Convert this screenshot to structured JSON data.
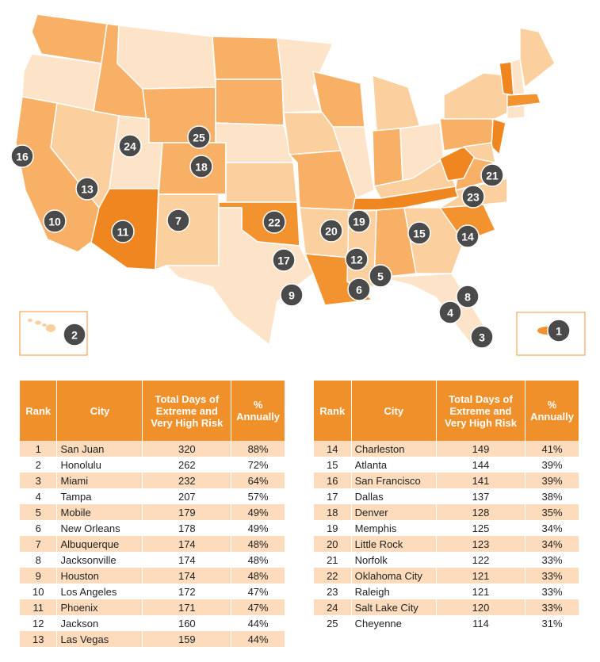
{
  "colors": {
    "very_light": "#fde3c8",
    "light": "#fbcf9e",
    "medium": "#f8b067",
    "dark": "#f39330",
    "darkest": "#ef861f",
    "border": "#ffffff",
    "marker": "#4a4a4a",
    "header": "#f0902b",
    "row_alt": "#fcdcbc"
  },
  "map": {
    "markers": [
      {
        "rank": "1",
        "city": "San Juan"
      },
      {
        "rank": "2",
        "city": "Honolulu"
      },
      {
        "rank": "3",
        "city": "Miami"
      },
      {
        "rank": "4",
        "city": "Tampa"
      },
      {
        "rank": "5",
        "city": "Mobile"
      },
      {
        "rank": "6",
        "city": "New Orleans"
      },
      {
        "rank": "7",
        "city": "Albuquerque"
      },
      {
        "rank": "8",
        "city": "Jacksonville"
      },
      {
        "rank": "9",
        "city": "Houston"
      },
      {
        "rank": "10",
        "city": "Los Angeles"
      },
      {
        "rank": "11",
        "city": "Phoenix"
      },
      {
        "rank": "12",
        "city": "Jackson"
      },
      {
        "rank": "13",
        "city": "Las Vegas"
      },
      {
        "rank": "14",
        "city": "Charleston"
      },
      {
        "rank": "15",
        "city": "Atlanta"
      },
      {
        "rank": "16",
        "city": "San Francisco"
      },
      {
        "rank": "17",
        "city": "Dallas"
      },
      {
        "rank": "18",
        "city": "Denver"
      },
      {
        "rank": "19",
        "city": "Memphis"
      },
      {
        "rank": "20",
        "city": "Little Rock"
      },
      {
        "rank": "21",
        "city": "Norfolk"
      },
      {
        "rank": "22",
        "city": "Oklahoma City"
      },
      {
        "rank": "23",
        "city": "Raleigh"
      },
      {
        "rank": "24",
        "city": "Salt Lake City"
      },
      {
        "rank": "25",
        "city": "Cheyenne"
      }
    ]
  },
  "table": {
    "headers": {
      "rank": "Rank",
      "city": "City",
      "days": "Total Days of Extreme and Very High Risk",
      "pct": "% Annually"
    },
    "left_rows": [
      {
        "rank": "1",
        "city": "San Juan",
        "days": "320",
        "pct": "88%"
      },
      {
        "rank": "2",
        "city": "Honolulu",
        "days": "262",
        "pct": "72%"
      },
      {
        "rank": "3",
        "city": "Miami",
        "days": "232",
        "pct": "64%"
      },
      {
        "rank": "4",
        "city": "Tampa",
        "days": "207",
        "pct": "57%"
      },
      {
        "rank": "5",
        "city": "Mobile",
        "days": "179",
        "pct": "49%"
      },
      {
        "rank": "6",
        "city": "New Orleans",
        "days": "178",
        "pct": "49%"
      },
      {
        "rank": "7",
        "city": "Albuquerque",
        "days": "174",
        "pct": "48%"
      },
      {
        "rank": "8",
        "city": "Jacksonville",
        "days": "174",
        "pct": "48%"
      },
      {
        "rank": "9",
        "city": "Houston",
        "days": "174",
        "pct": "48%"
      },
      {
        "rank": "10",
        "city": "Los Angeles",
        "days": "172",
        "pct": "47%"
      },
      {
        "rank": "11",
        "city": "Phoenix",
        "days": "171",
        "pct": "47%"
      },
      {
        "rank": "12",
        "city": "Jackson",
        "days": "160",
        "pct": "44%"
      },
      {
        "rank": "13",
        "city": "Las Vegas",
        "days": "159",
        "pct": "44%"
      }
    ],
    "right_rows": [
      {
        "rank": "14",
        "city": "Charleston",
        "days": "149",
        "pct": "41%"
      },
      {
        "rank": "15",
        "city": "Atlanta",
        "days": "144",
        "pct": "39%"
      },
      {
        "rank": "16",
        "city": "San Francisco",
        "days": "141",
        "pct": "39%"
      },
      {
        "rank": "17",
        "city": "Dallas",
        "days": "137",
        "pct": "38%"
      },
      {
        "rank": "18",
        "city": "Denver",
        "days": "128",
        "pct": "35%"
      },
      {
        "rank": "19",
        "city": "Memphis",
        "days": "125",
        "pct": "34%"
      },
      {
        "rank": "20",
        "city": "Little Rock",
        "days": "123",
        "pct": "34%"
      },
      {
        "rank": "21",
        "city": "Norfolk",
        "days": "122",
        "pct": "33%"
      },
      {
        "rank": "22",
        "city": "Oklahoma City",
        "days": "121",
        "pct": "33%"
      },
      {
        "rank": "23",
        "city": "Raleigh",
        "days": "121",
        "pct": "33%"
      },
      {
        "rank": "24",
        "city": "Salt Lake City",
        "days": "120",
        "pct": "33%"
      },
      {
        "rank": "25",
        "city": "Cheyenne",
        "days": "114",
        "pct": "31%"
      }
    ]
  }
}
